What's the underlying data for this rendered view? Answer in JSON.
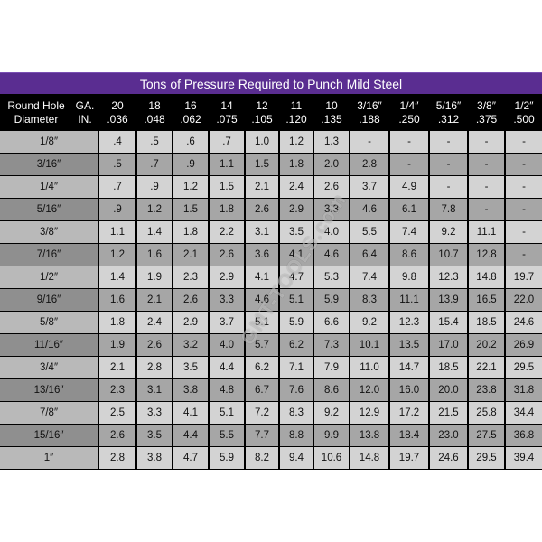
{
  "title": "Tons of Pressure Required to Punch Mild Steel",
  "header": {
    "first_line1": "Round Hole",
    "first_line2": "Diameter",
    "ga_line1": "GA.",
    "ga_line2": "IN.",
    "columns": [
      {
        "l1": "20",
        "l2": ".036"
      },
      {
        "l1": "18",
        "l2": ".048"
      },
      {
        "l1": "16",
        "l2": ".062"
      },
      {
        "l1": "14",
        "l2": ".075"
      },
      {
        "l1": "12",
        "l2": ".105"
      },
      {
        "l1": "11",
        "l2": ".120"
      },
      {
        "l1": "10",
        "l2": ".135"
      },
      {
        "l1": "3/16″",
        "l2": ".188"
      },
      {
        "l1": "1/4″",
        "l2": ".250"
      },
      {
        "l1": "5/16″",
        "l2": ".312"
      },
      {
        "l1": "3/8″",
        "l2": ".375"
      },
      {
        "l1": "1/2″",
        "l2": ".500"
      }
    ]
  },
  "rows": [
    {
      "diameter": "1/8″",
      "values": [
        ".4",
        ".5",
        ".6",
        ".7",
        "1.0",
        "1.2",
        "1.3",
        "-",
        "-",
        "-",
        "-",
        "-"
      ]
    },
    {
      "diameter": "3/16″",
      "values": [
        ".5",
        ".7",
        ".9",
        "1.1",
        "1.5",
        "1.8",
        "2.0",
        "2.8",
        "-",
        "-",
        "-",
        "-"
      ]
    },
    {
      "diameter": "1/4″",
      "values": [
        ".7",
        ".9",
        "1.2",
        "1.5",
        "2.1",
        "2.4",
        "2.6",
        "3.7",
        "4.9",
        "-",
        "-",
        "-"
      ]
    },
    {
      "diameter": "5/16″",
      "values": [
        ".9",
        "1.2",
        "1.5",
        "1.8",
        "2.6",
        "2.9",
        "3.3",
        "4.6",
        "6.1",
        "7.8",
        "-",
        "-"
      ]
    },
    {
      "diameter": "3/8″",
      "values": [
        "1.1",
        "1.4",
        "1.8",
        "2.2",
        "3.1",
        "3.5",
        "4.0",
        "5.5",
        "7.4",
        "9.2",
        "11.1",
        "-"
      ]
    },
    {
      "diameter": "7/16″",
      "values": [
        "1.2",
        "1.6",
        "2.1",
        "2.6",
        "3.6",
        "4.1",
        "4.6",
        "6.4",
        "8.6",
        "10.7",
        "12.8",
        "-"
      ]
    },
    {
      "diameter": "1/2″",
      "values": [
        "1.4",
        "1.9",
        "2.3",
        "2.9",
        "4.1",
        "4.7",
        "5.3",
        "7.4",
        "9.8",
        "12.3",
        "14.8",
        "19.7"
      ]
    },
    {
      "diameter": "9/16″",
      "values": [
        "1.6",
        "2.1",
        "2.6",
        "3.3",
        "4.6",
        "5.1",
        "5.9",
        "8.3",
        "11.1",
        "13.9",
        "16.5",
        "22.0"
      ]
    },
    {
      "diameter": "5/8″",
      "values": [
        "1.8",
        "2.4",
        "2.9",
        "3.7",
        "5.1",
        "5.9",
        "6.6",
        "9.2",
        "12.3",
        "15.4",
        "18.5",
        "24.6"
      ]
    },
    {
      "diameter": "11/16″",
      "values": [
        "1.9",
        "2.6",
        "3.2",
        "4.0",
        "5.7",
        "6.2",
        "7.3",
        "10.1",
        "13.5",
        "17.0",
        "20.2",
        "26.9"
      ]
    },
    {
      "diameter": "3/4″",
      "values": [
        "2.1",
        "2.8",
        "3.5",
        "4.4",
        "6.2",
        "7.1",
        "7.9",
        "11.0",
        "14.7",
        "18.5",
        "22.1",
        "29.5"
      ]
    },
    {
      "diameter": "13/16″",
      "values": [
        "2.3",
        "3.1",
        "3.8",
        "4.8",
        "6.7",
        "7.6",
        "8.6",
        "12.0",
        "16.0",
        "20.0",
        "23.8",
        "31.8"
      ]
    },
    {
      "diameter": "7/8″",
      "values": [
        "2.5",
        "3.3",
        "4.1",
        "5.1",
        "7.2",
        "8.3",
        "9.2",
        "12.9",
        "17.2",
        "21.5",
        "25.8",
        "34.4"
      ]
    },
    {
      "diameter": "15/16″",
      "values": [
        "2.6",
        "3.5",
        "4.4",
        "5.5",
        "7.7",
        "8.8",
        "9.9",
        "13.8",
        "18.4",
        "23.0",
        "27.5",
        "36.8"
      ]
    },
    {
      "diameter": "1″",
      "values": [
        "2.8",
        "3.8",
        "4.7",
        "5.9",
        "8.2",
        "9.4",
        "10.6",
        "14.8",
        "19.7",
        "24.6",
        "29.5",
        "39.4"
      ]
    }
  ],
  "watermark": "GMT-TOOLS.com",
  "colors": {
    "title_bg": "#5a2d91",
    "header_bg": "#000000",
    "row_light": "#d3d3d3",
    "row_dark": "#a6a6a6"
  }
}
